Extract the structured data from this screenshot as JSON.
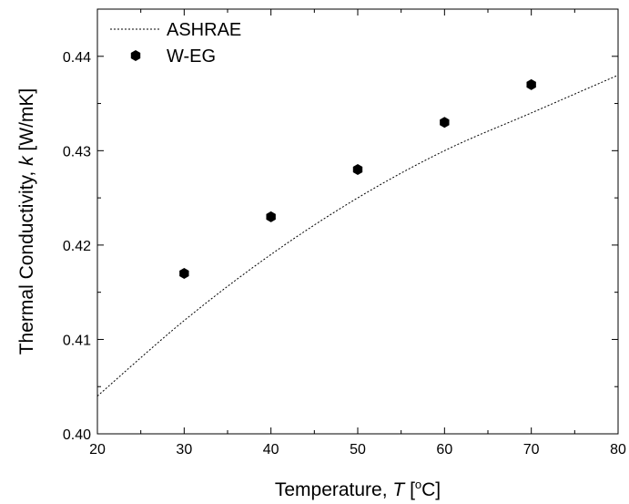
{
  "chart_data": {
    "type": "scatter",
    "title": "",
    "xlabel": {
      "prefix": "Temperature, ",
      "symbol": "T",
      "unit_open": " [",
      "degree": "o",
      "unit_close": "C]"
    },
    "ylabel": {
      "prefix": "Thermal Conductivity, ",
      "symbol": "k",
      "unit": " [W/mK]"
    },
    "xlim": [
      20,
      80
    ],
    "ylim": [
      0.4,
      0.445
    ],
    "xticks": [
      20,
      30,
      40,
      50,
      60,
      70,
      80
    ],
    "xtick_labels": [
      "20",
      "30",
      "40",
      "50",
      "60",
      "70",
      "80"
    ],
    "yticks": [
      0.4,
      0.41,
      0.42,
      0.43,
      0.44
    ],
    "ytick_labels": [
      "0.40",
      "0.41",
      "0.42",
      "0.43",
      "0.44"
    ],
    "grid": false,
    "legend_position": "top-left",
    "series": [
      {
        "name": "ASHRAE",
        "kind": "line",
        "style": "dotted",
        "color": "#000000",
        "x": [
          20,
          30,
          40,
          50,
          60,
          70,
          80
        ],
        "y": [
          0.404,
          0.412,
          0.419,
          0.425,
          0.43,
          0.434,
          0.438
        ]
      },
      {
        "name": "W-EG",
        "kind": "scatter",
        "marker": "hexagon",
        "color": "#000000",
        "x": [
          30,
          40,
          50,
          60,
          70
        ],
        "y": [
          0.417,
          0.423,
          0.428,
          0.433,
          0.437
        ]
      }
    ]
  }
}
